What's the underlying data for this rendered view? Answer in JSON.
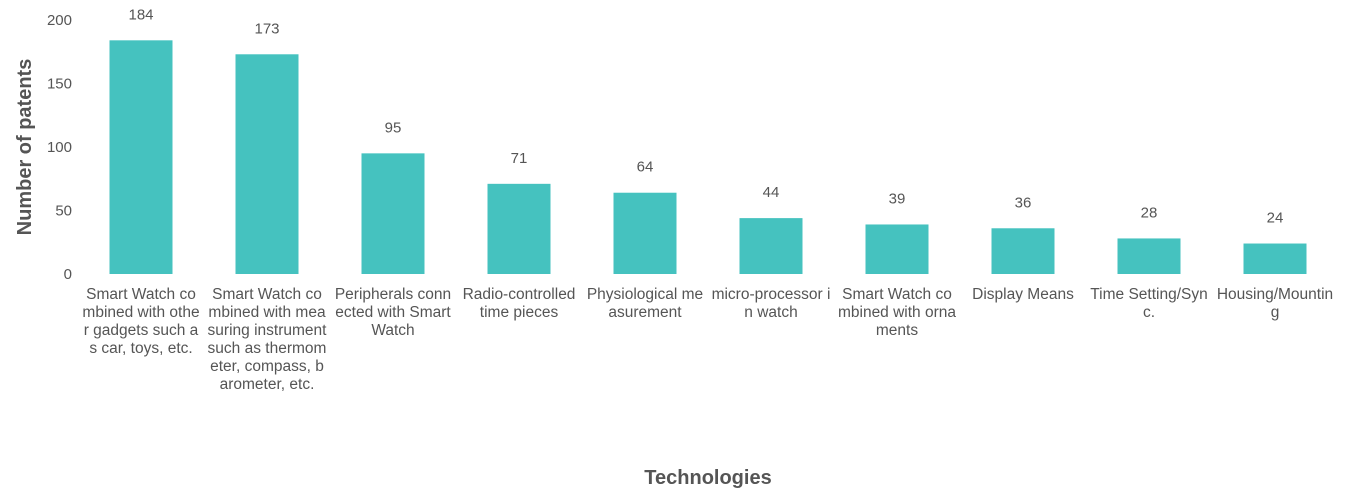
{
  "chart_data": {
    "type": "bar",
    "categories": [
      "Smart Watch combined with other gadgets such as car, toys, etc.",
      "Smart Watch combined with measuring instrument such as thermometer, compass, barometer, etc.",
      "Peripherals connected with Smart Watch",
      "Radio-controlled time pieces",
      "Physiological measurement",
      "micro-processor in watch",
      "Smart Watch combined with ornaments",
      "Display Means",
      "Time Setting/Sync.",
      "Housing/Mounting"
    ],
    "values": [
      184,
      173,
      95,
      71,
      64,
      44,
      39,
      36,
      28,
      24
    ],
    "xlabel": "Technologies",
    "ylabel": "Number of patents",
    "ylim": [
      0,
      200
    ],
    "yticks": [
      0,
      50,
      100,
      150,
      200
    ],
    "data_labels": true,
    "grid": false,
    "legend": "none",
    "bar_color": "#45c2bf"
  }
}
